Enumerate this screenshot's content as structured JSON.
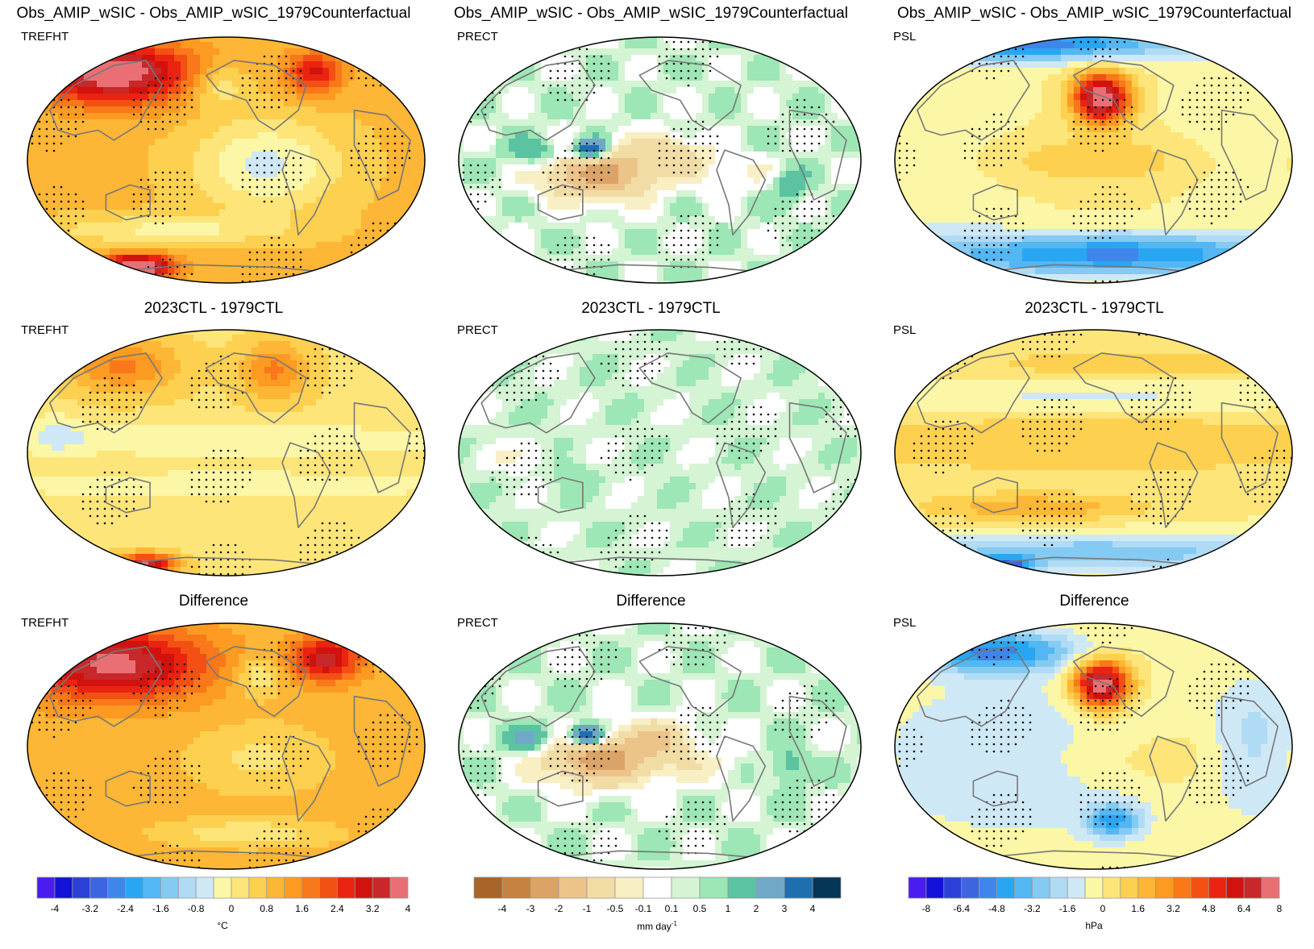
{
  "row_titles": [
    [
      "Obs_AMIP_wSIC - Obs_AMIP_wSIC_1979Counterfactual",
      "Obs_AMIP_wSIC - Obs_AMIP_wSIC_1979Counterfactual",
      "Obs_AMIP_wSIC - Obs_AMIP_wSIC_1979Counterfactual"
    ],
    [
      "",
      "2023CTL - 1979CTL",
      "2023CTL - 1979CTL"
    ],
    [
      "Difference",
      "Difference",
      "Difference"
    ]
  ],
  "row1_col0_title": "2023CTL - 1979CTL",
  "variables": [
    "TREFHT",
    "PRECT",
    "PSL"
  ],
  "chart_data": [
    {
      "type": "heatmap",
      "variable": "TREFHT",
      "projection": "Robinson (Pacific-centered)",
      "stippling": "significant regions",
      "colorbar": {
        "unit": "°C",
        "tick_labels": [
          "-4",
          "-3.2",
          "-2.4",
          "-1.6",
          "-0.8",
          "0",
          "0.8",
          "1.6",
          "2.4",
          "3.2",
          "4"
        ],
        "levels": [
          -4,
          -3.6,
          -3.2,
          -2.8,
          -2.4,
          -2,
          -1.6,
          -1.2,
          -0.8,
          -0.4,
          0,
          0.4,
          0.8,
          1.2,
          1.6,
          2,
          2.4,
          2.8,
          3.2,
          3.6,
          4
        ],
        "colors": [
          "#4b1cf0",
          "#1212d8",
          "#2a40d6",
          "#3b66e0",
          "#3f86ea",
          "#29a6f2",
          "#52b7f2",
          "#84caf2",
          "#b0dbf4",
          "#cfe8f6",
          "#fbf7a6",
          "#fde57a",
          "#fdd050",
          "#fdb635",
          "#fc9a22",
          "#f8781a",
          "#f35014",
          "#ea2410",
          "#d1120e",
          "#c8282a",
          "#ea6f75"
        ]
      },
      "panels": [
        {
          "title": "Obs_AMIP_wSIC - Obs_AMIP_wSIC_1979Counterfactual",
          "field": "base_t"
        },
        {
          "title": "2023CTL - 1979CTL",
          "field": "ctl_t"
        },
        {
          "title": "Difference",
          "field": "diff_t"
        }
      ]
    },
    {
      "type": "heatmap",
      "variable": "PRECT",
      "projection": "Robinson (Pacific-centered)",
      "stippling": "significant regions",
      "colorbar": {
        "unit": "mm day",
        "unit_superscript": "-1",
        "tick_labels": [
          "-4",
          "-3",
          "-2",
          "-1",
          "-0.5",
          "-0.1",
          "0.1",
          "0.5",
          "1",
          "2",
          "3",
          "4"
        ],
        "levels": [
          -5,
          -4,
          -3,
          -2,
          -1,
          -0.5,
          -0.1,
          0.1,
          0.5,
          1,
          2,
          3,
          4,
          5
        ],
        "colors": [
          "#a8652a",
          "#c48340",
          "#dba466",
          "#ecc48a",
          "#f2dca6",
          "#f8efc4",
          "#ffffff",
          "#d4f4d4",
          "#9de6b6",
          "#5cc3a2",
          "#6fa9c7",
          "#1f6fae",
          "#063657"
        ]
      },
      "panels": [
        {
          "title": "Obs_AMIP_wSIC - Obs_AMIP_wSIC_1979Counterfactual",
          "field": "base_p"
        },
        {
          "title": "2023CTL - 1979CTL",
          "field": "ctl_p"
        },
        {
          "title": "Difference",
          "field": "diff_p"
        }
      ]
    },
    {
      "type": "heatmap",
      "variable": "PSL",
      "projection": "Robinson (Pacific-centered)",
      "stippling": "significant regions",
      "colorbar": {
        "unit": "hPa",
        "tick_labels": [
          "-8",
          "-6.4",
          "-4.8",
          "-3.2",
          "-1.6",
          "0",
          "1.6",
          "3.2",
          "4.8",
          "6.4",
          "8"
        ],
        "levels": [
          -8,
          -7.2,
          -6.4,
          -5.6,
          -4.8,
          -4,
          -3.2,
          -2.4,
          -1.6,
          -0.8,
          0,
          0.8,
          1.6,
          2.4,
          3.2,
          4,
          4.8,
          5.6,
          6.4,
          7.2,
          8
        ],
        "colors": [
          "#4b1cf0",
          "#1212d8",
          "#2a40d6",
          "#3b66e0",
          "#3f86ea",
          "#29a6f2",
          "#52b7f2",
          "#84caf2",
          "#b0dbf4",
          "#cfe8f6",
          "#fbf7a6",
          "#fde57a",
          "#fdd050",
          "#fdb635",
          "#fc9a22",
          "#f8781a",
          "#f35014",
          "#ea2410",
          "#d1120e",
          "#c8282a",
          "#ea6f75"
        ]
      },
      "panels": [
        {
          "title": "Obs_AMIP_wSIC - Obs_AMIP_wSIC_1979Counterfactual",
          "field": "base_s"
        },
        {
          "title": "2023CTL - 1979CTL",
          "field": "ctl_s"
        },
        {
          "title": "Difference",
          "field": "diff_s"
        }
      ]
    }
  ]
}
